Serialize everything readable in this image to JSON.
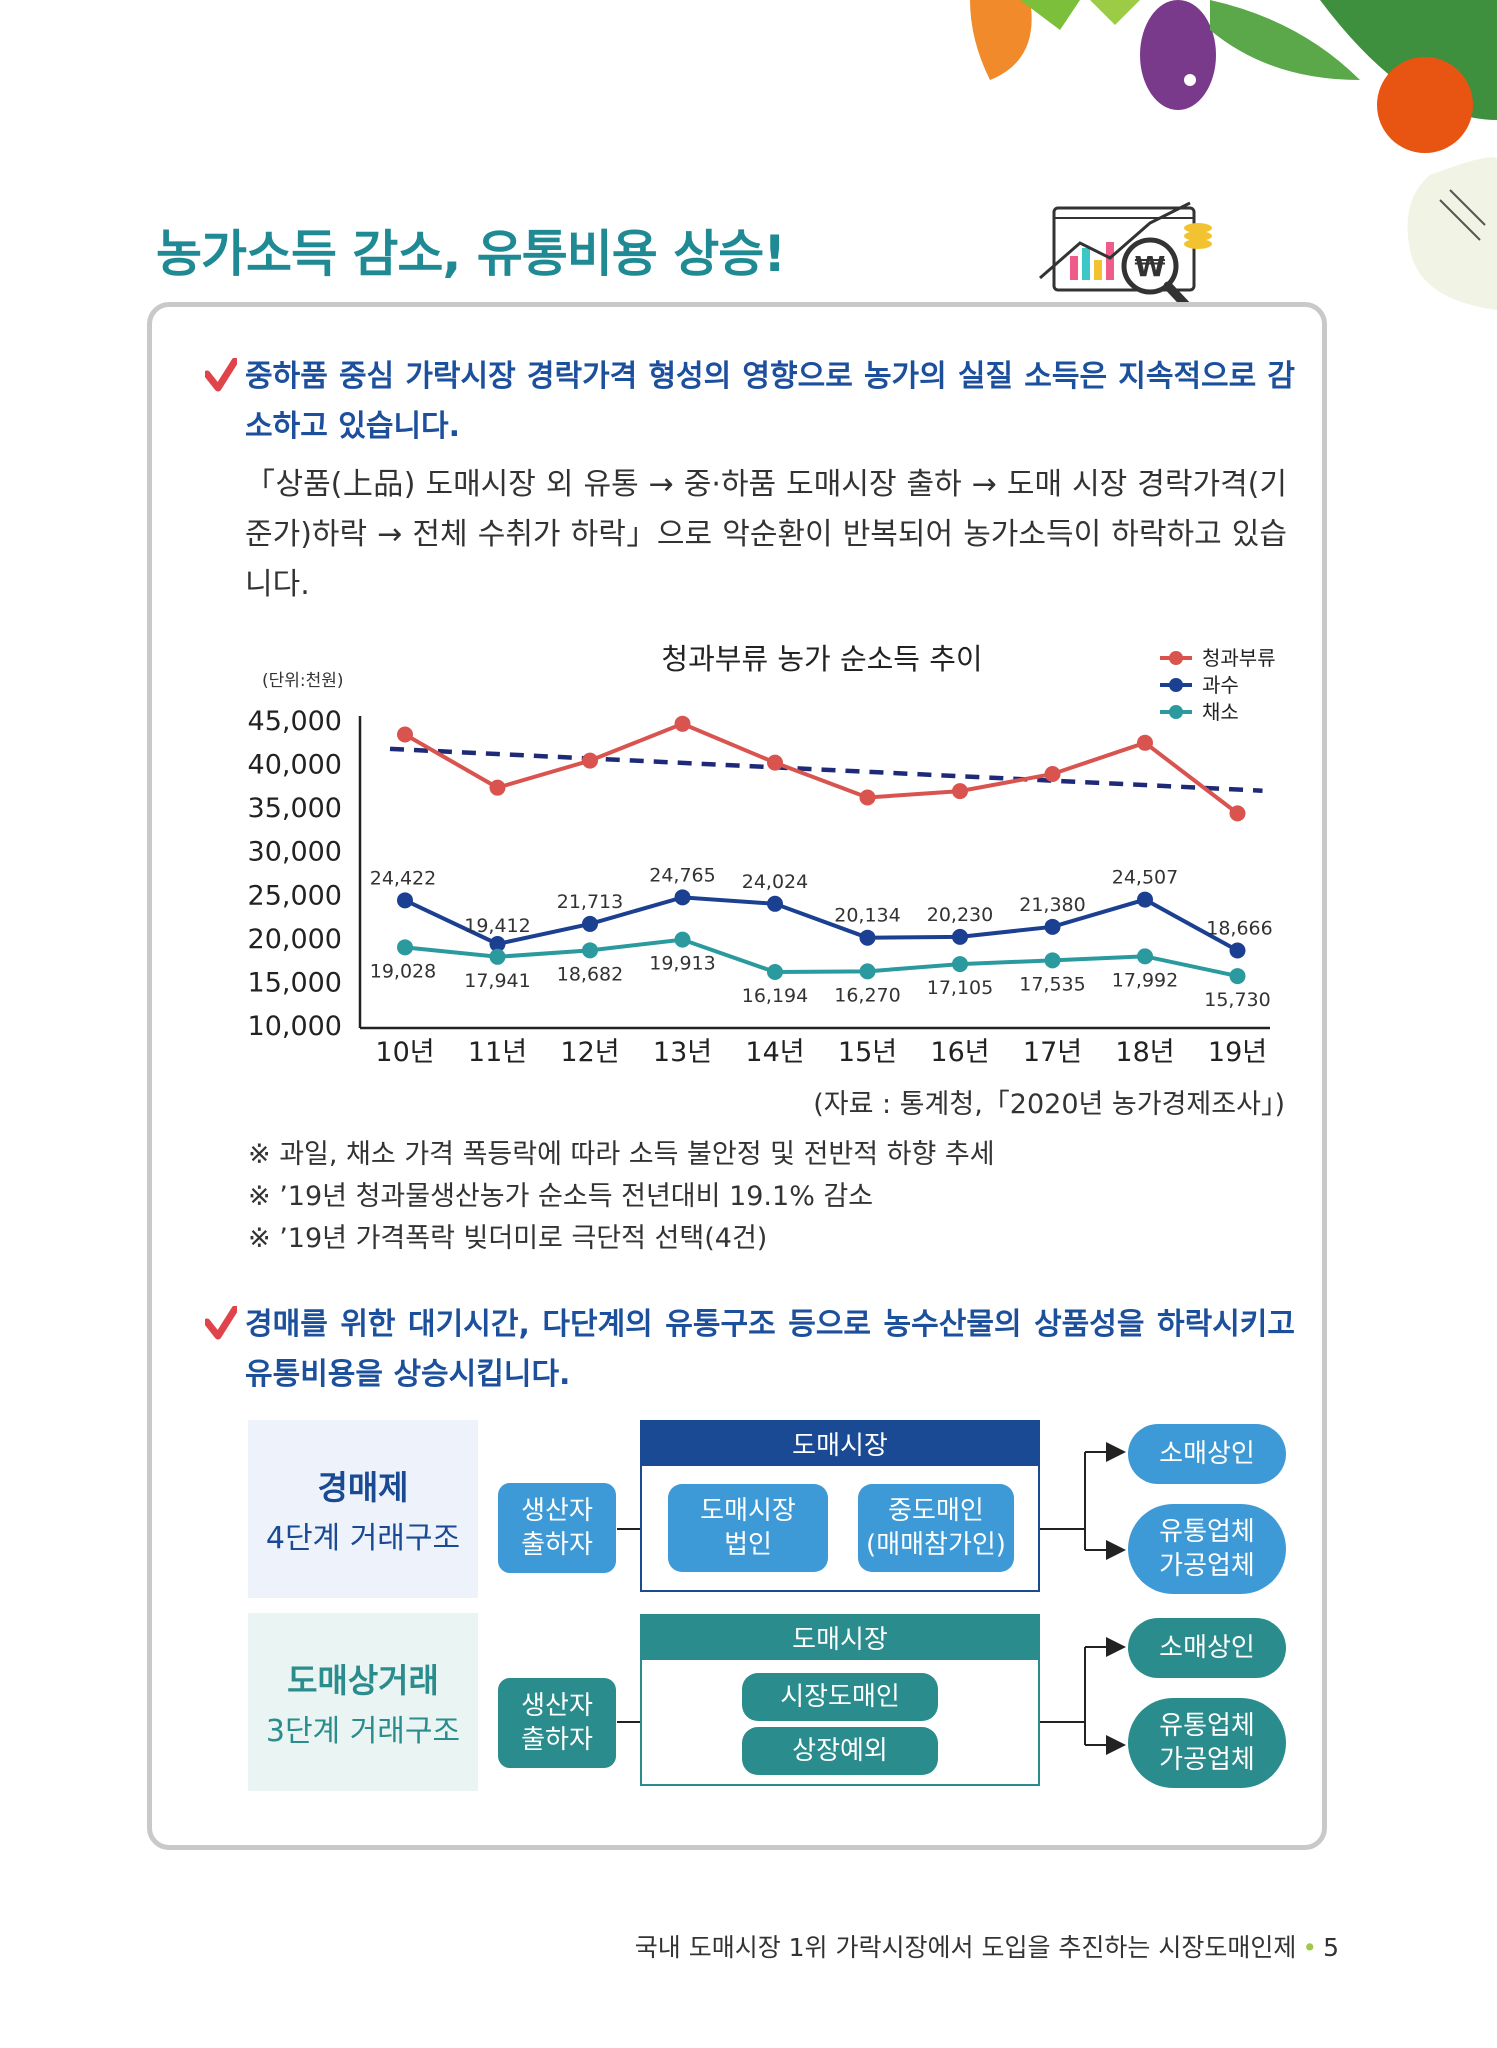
{
  "title": "농가소득 감소, 유통비용 상승!",
  "section1": {
    "heading": "중하품 중심 가락시장 경락가격 형성의 영향으로 농가의 실질 소득은 지속적으로 감소하고 있습니다.",
    "paragraph": "「상품(上品) 도매시장 외 유통 → 중·하품 도매시장 출하 → 도매 시장 경락가격(기준가)하락 → 전체 수취가 하락」으로 악순환이 반복되어 농가소득이 하락하고 있습니다."
  },
  "chart_data": {
    "type": "line",
    "title": "청과부류 농가 순소득 추이",
    "unit_label": "(단위:천원)",
    "categories": [
      "10년",
      "11년",
      "12년",
      "13년",
      "14년",
      "15년",
      "16년",
      "17년",
      "18년",
      "19년"
    ],
    "ylim": [
      10000,
      45000
    ],
    "yticks": [
      "45,000",
      "40,000",
      "35,000",
      "30,000",
      "25,000",
      "20,000",
      "15,000",
      "10,000"
    ],
    "ytick_values": [
      45000,
      40000,
      35000,
      30000,
      25000,
      20000,
      15000,
      10000
    ],
    "series": [
      {
        "name": "청과부류",
        "color": "#d9534f",
        "values": [
          43450,
          37350,
          40450,
          44680,
          40220,
          36220,
          36950,
          38920,
          42500,
          34400
        ],
        "labels": []
      },
      {
        "name": "과수",
        "color": "#1b3f91",
        "values": [
          24422,
          19412,
          21713,
          24765,
          24024,
          20134,
          20230,
          21380,
          24507,
          18666
        ],
        "labels": [
          "24,422",
          "19,412",
          "21,713",
          "24,765",
          "24,024",
          "20,134",
          "20,230",
          "21,380",
          "24,507",
          "18,666"
        ]
      },
      {
        "name": "채소",
        "color": "#2a9a9e",
        "values": [
          19028,
          17941,
          18682,
          19913,
          16194,
          16270,
          17105,
          17535,
          17992,
          15730
        ],
        "labels": [
          "19,028",
          "17,941",
          "18,682",
          "19,913",
          "16,194",
          "16,270",
          "17,105",
          "17,535",
          "17,992",
          "15,730"
        ]
      }
    ],
    "trendline": {
      "color": "#1e2a78",
      "from": 41800,
      "to": 37000
    },
    "legend_position": "top-right",
    "source": "(자료 : 통계청,「2020년 농가경제조사」)"
  },
  "notes": [
    "※ 과일, 채소 가격 폭등락에 따라 소득 불안정 및 전반적 하향 추세",
    "※ ’19년 청과물생산농가 순소득 전년대비 19.1% 감소",
    "※ ’19년 가격폭락 빚더미로 극단적 선택(4건)"
  ],
  "section2": {
    "heading": "경매를 위한 대기시간, 다단계의 유통구조 등으로 농수산물의 상품성을 하락시키고 유통비용을 상승시킵니다."
  },
  "flow": {
    "auction": {
      "title": "경매제",
      "subtitle": "4단계 거래구조",
      "producer": [
        "생산자",
        "출하자"
      ],
      "market_header": "도매시장",
      "market_corp": [
        "도매시장",
        "법인"
      ],
      "broker": [
        "중도매인",
        "(매매참가인)"
      ],
      "retail": "소매상인",
      "distributor": [
        "유통업체",
        "가공업체"
      ]
    },
    "wholesale": {
      "title": "도매상거래",
      "subtitle": "3단계 거래구조",
      "producer": [
        "생산자",
        "출하자"
      ],
      "market_header": "도매시장",
      "market_wholesaler": "시장도매인",
      "off_list": "상장예외",
      "retail": "소매상인",
      "distributor": [
        "유통업체",
        "가공업체"
      ]
    }
  },
  "footer": {
    "text": "국내 도매시장 1위 가락시장에서 도입을 추진하는 시장도매인제",
    "page": "5"
  },
  "colors": {
    "title_teal": "#1f8a93",
    "heading_blue": "#1c4f9c",
    "check_red": "#e0444a",
    "auction_blue": "#1a4a94",
    "light_blue": "#3e9ad6",
    "teal": "#2a8c8c"
  }
}
